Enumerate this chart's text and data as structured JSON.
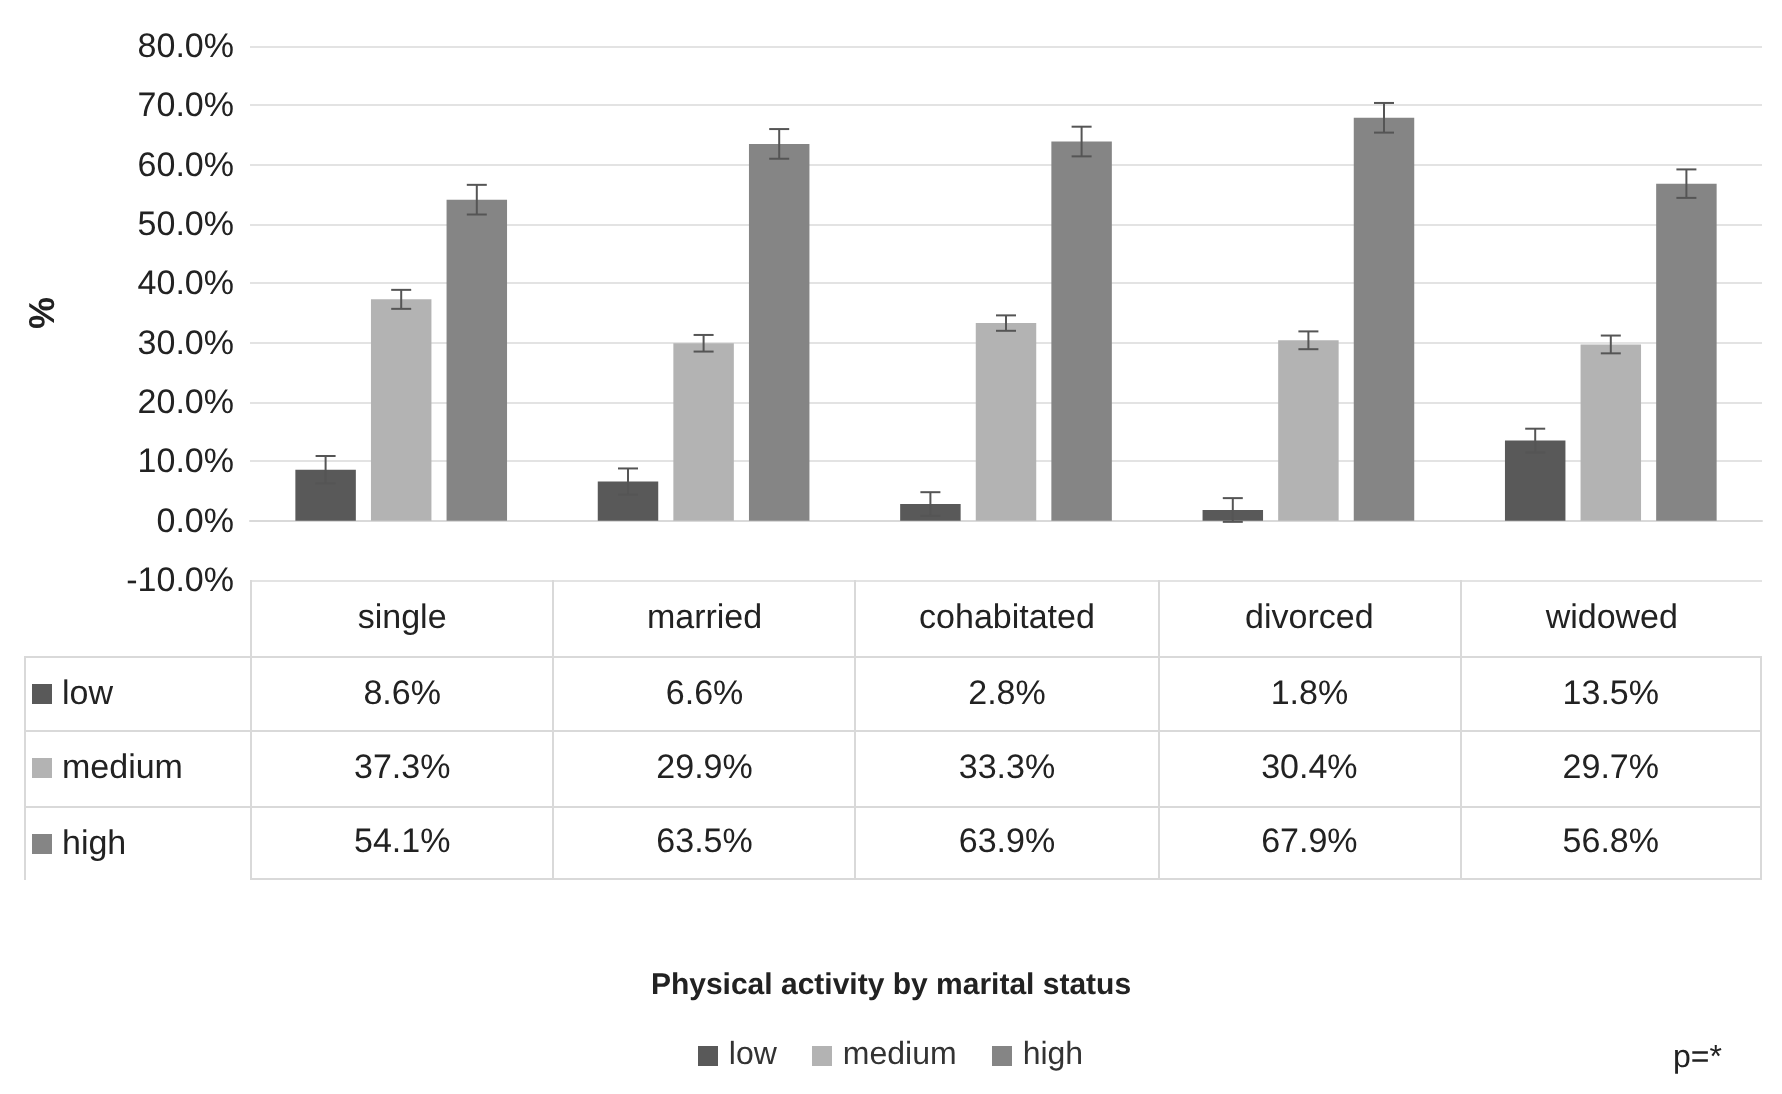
{
  "chart_data": {
    "type": "bar",
    "title": "Physical activity by marital status",
    "ylabel": "%",
    "categories": [
      "single",
      "married",
      "cohabitated",
      "divorced",
      "widowed"
    ],
    "series": [
      {
        "name": "low",
        "color": "#595959",
        "values": [
          8.6,
          6.6,
          2.8,
          1.8,
          13.5
        ],
        "errors": [
          2.3,
          2.2,
          2.0,
          2.0,
          2.0
        ],
        "value_labels": [
          "8.6%",
          "6.6%",
          "2.8%",
          "1.8%",
          "13.5%"
        ]
      },
      {
        "name": "medium",
        "color": "#b3b3b3",
        "values": [
          37.3,
          29.9,
          33.3,
          30.4,
          29.7
        ],
        "errors": [
          1.6,
          1.4,
          1.3,
          1.5,
          1.5
        ],
        "value_labels": [
          "37.3%",
          "29.9%",
          "33.3%",
          "30.4%",
          "29.7%"
        ]
      },
      {
        "name": "high",
        "color": "#858585",
        "values": [
          54.1,
          63.5,
          63.9,
          67.9,
          56.8
        ],
        "errors": [
          2.5,
          2.5,
          2.5,
          2.5,
          2.4
        ],
        "value_labels": [
          "54.1%",
          "63.5%",
          "63.9%",
          "67.9%",
          "56.8%"
        ]
      }
    ],
    "ylim": [
      -10,
      80
    ],
    "yticks": [
      {
        "value": -10,
        "label": "-10.0%"
      },
      {
        "value": 0,
        "label": "0.0%"
      },
      {
        "value": 10,
        "label": "10.0%"
      },
      {
        "value": 20,
        "label": "20.0%"
      },
      {
        "value": 30,
        "label": "30.0%"
      },
      {
        "value": 40,
        "label": "40.0%"
      },
      {
        "value": 50,
        "label": "50.0%"
      },
      {
        "value": 60,
        "label": "60.0%"
      },
      {
        "value": 70,
        "label": "70.0%"
      },
      {
        "value": 80,
        "label": "80.0%"
      }
    ],
    "grid": "y",
    "legend": "bottom",
    "annotations": [
      "p=*"
    ]
  }
}
